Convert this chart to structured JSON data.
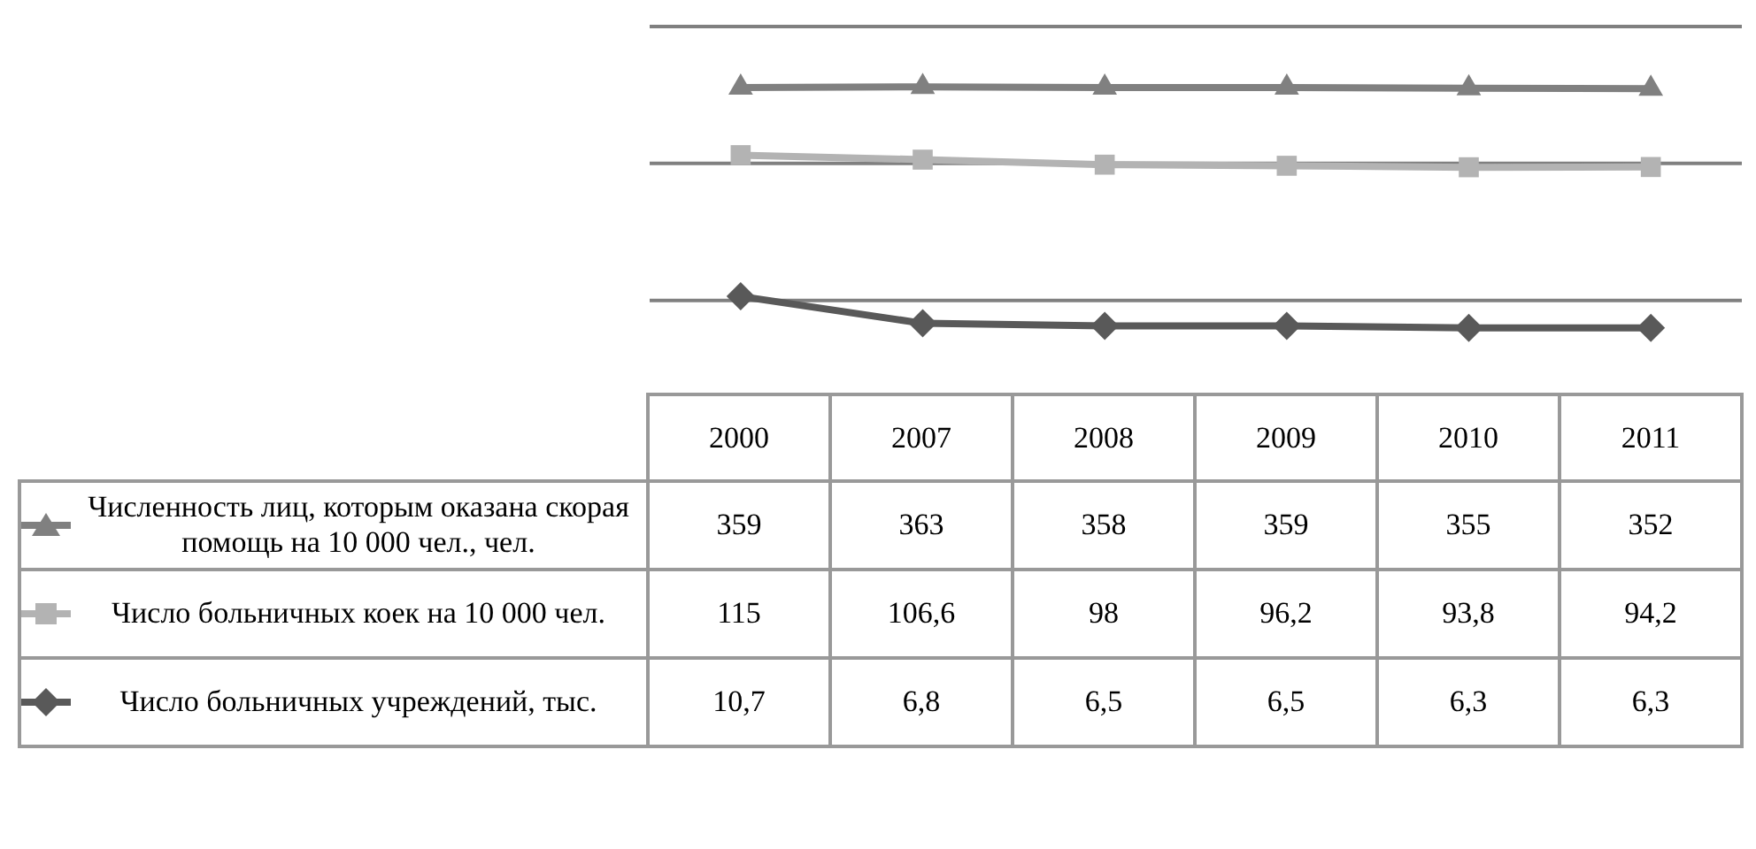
{
  "chart_data": {
    "type": "line",
    "categories": [
      "2000",
      "2007",
      "2008",
      "2009",
      "2010",
      "2011"
    ],
    "series": [
      {
        "name": "Численность лиц, которым оказана скорая помощь на 10 000 чел., чел.",
        "color": "#808080",
        "marker": "triangle",
        "values": [
          359,
          363,
          358,
          359,
          355,
          352
        ],
        "value_labels": [
          "359",
          "363",
          "358",
          "359",
          "355",
          "352"
        ]
      },
      {
        "name": "Число больничных коек на 10 000 чел.",
        "color": "#b3b3b3",
        "marker": "square",
        "values": [
          115,
          106.6,
          98,
          96.2,
          93.8,
          94.2
        ],
        "value_labels": [
          "115",
          "106,6",
          "98",
          "96,2",
          "93,8",
          "94,2"
        ]
      },
      {
        "name": "Число больничных учреждений, тыс.",
        "color": "#595959",
        "marker": "diamond",
        "values": [
          10.7,
          6.8,
          6.5,
          6.5,
          6.3,
          6.3
        ],
        "value_labels": [
          "10,7",
          "6,8",
          "6,5",
          "6,5",
          "6,3",
          "6,3"
        ]
      }
    ],
    "log": "y",
    "legend": "bottom",
    "ref_lines": [
      {
        "axis": "y",
        "value": 10,
        "color": "#808080"
      },
      {
        "axis": "y",
        "value": 100,
        "color": "#808080"
      },
      {
        "axis": "y",
        "value": 1000,
        "color": "#808080"
      }
    ]
  }
}
